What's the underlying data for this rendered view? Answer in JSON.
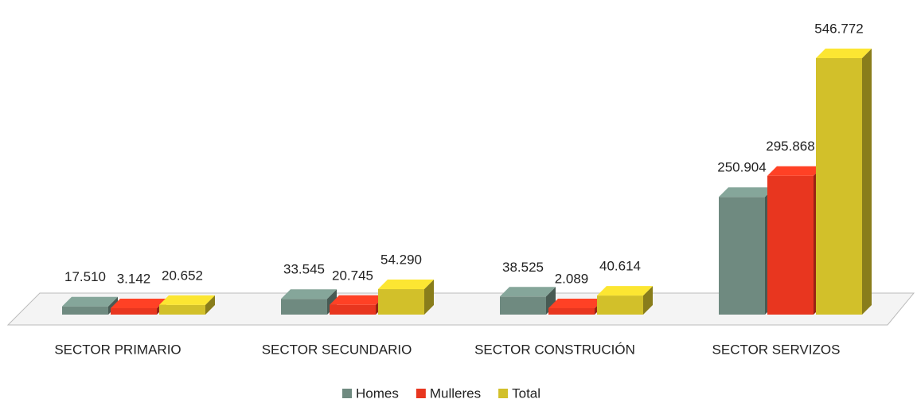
{
  "chart_data": {
    "type": "bar3d",
    "categories": [
      "SECTOR PRIMARIO",
      "SECTOR SECUNDARIO",
      "SECTOR CONSTRUCIÓN",
      "SECTOR SERVIZOS"
    ],
    "series": [
      {
        "name": "Homes",
        "color": "#6f8a80",
        "values": [
          17510,
          33545,
          38525,
          250904
        ],
        "value_labels": [
          "17.510",
          "33.545",
          "38.525",
          "250.904"
        ]
      },
      {
        "name": "Mulleres",
        "color": "#e8361f",
        "values": [
          3142,
          20745,
          2089,
          295868
        ],
        "value_labels": [
          "3.142",
          "20.745",
          "2.089",
          "295.868"
        ]
      },
      {
        "name": "Total",
        "color": "#d2c02a",
        "values": [
          20652,
          54290,
          40614,
          546772
        ],
        "value_labels": [
          "20.652",
          "54.290",
          "40.614",
          "546.772"
        ]
      }
    ],
    "legend": "bottom"
  }
}
